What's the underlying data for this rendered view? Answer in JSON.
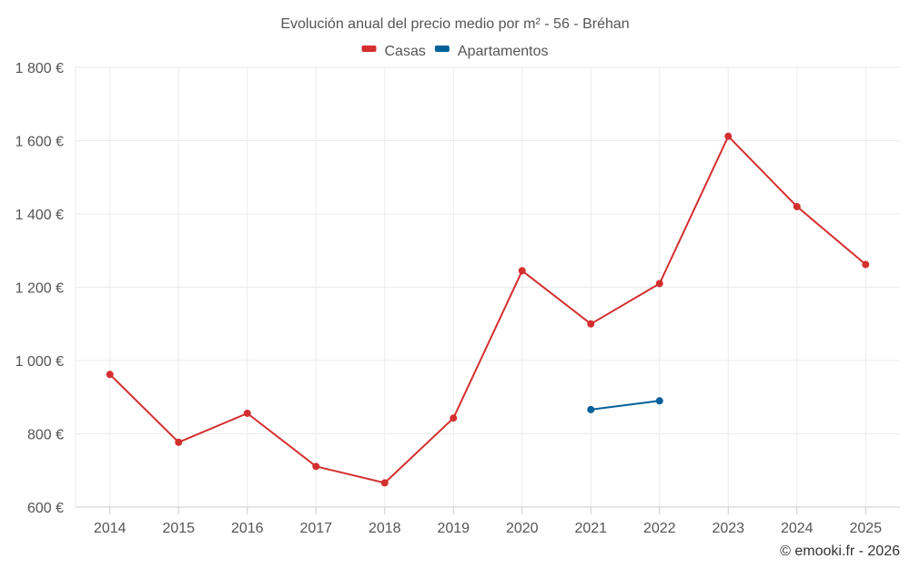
{
  "chart_data": {
    "type": "line",
    "title": "Evolución anual del precio medio por m² - 56 - Bréhan",
    "categories": [
      "2014",
      "2015",
      "2016",
      "2017",
      "2018",
      "2019",
      "2020",
      "2021",
      "2022",
      "2023",
      "2024",
      "2025"
    ],
    "series": [
      {
        "name": "Casas",
        "color": "#d32f2f",
        "values": [
          962,
          777,
          856,
          711,
          666,
          843,
          1245,
          1100,
          1210,
          1612,
          1420,
          1262
        ]
      },
      {
        "name": "Apartamentos",
        "color": "#036199",
        "values": [
          null,
          null,
          null,
          null,
          null,
          null,
          null,
          866,
          890,
          null,
          null,
          null
        ]
      }
    ],
    "ylim": [
      600,
      1800
    ],
    "yticks": [
      600,
      800,
      1000,
      1200,
      1400,
      1600,
      1800
    ],
    "ytick_labels": [
      "600 €",
      "800 €",
      "1 000 €",
      "1 200 €",
      "1 400 €",
      "1 600 €",
      "1 800 €"
    ],
    "grid": true,
    "legend_position": "top-center"
  },
  "credit": "© emooki.fr - 2026"
}
